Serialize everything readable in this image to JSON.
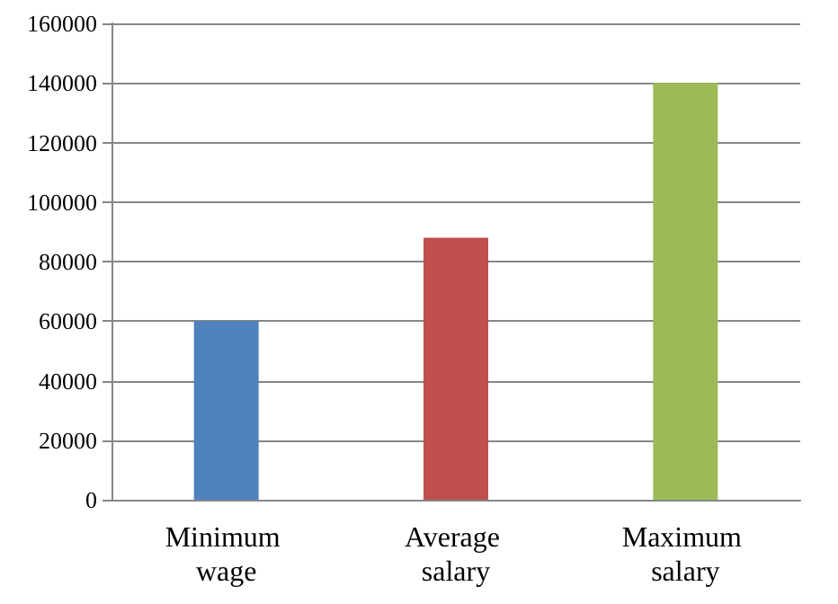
{
  "chart_data": {
    "type": "bar",
    "categories": [
      "Minimum wage",
      "Average salary",
      "Maximum salary"
    ],
    "values": [
      60000,
      88000,
      140000
    ],
    "colors": [
      "#4f81bd",
      "#c0504d",
      "#9bbb59"
    ],
    "ylim": [
      0,
      160000
    ],
    "yticks": [
      0,
      20000,
      40000,
      60000,
      80000,
      100000,
      120000,
      140000,
      160000
    ],
    "grid": "y"
  }
}
